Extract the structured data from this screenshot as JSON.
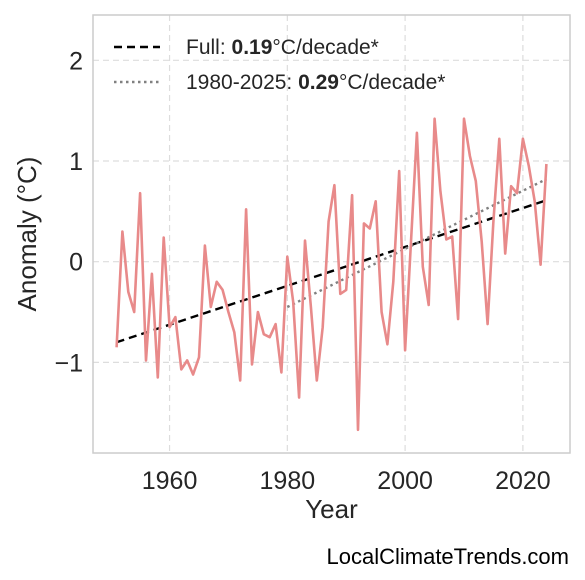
{
  "chart_data": {
    "type": "line",
    "xlabel": "Year",
    "ylabel": "Anomaly (°C)",
    "xlim": [
      1947,
      2028
    ],
    "ylim": [
      -1.9,
      2.45
    ],
    "x_ticks": [
      1960,
      1980,
      2000,
      2020
    ],
    "y_ticks": [
      -1,
      0,
      1,
      2
    ],
    "y_tick_labels": [
      "−1",
      "0",
      "1",
      "2"
    ],
    "grid": true,
    "legend_position": "top-left",
    "colors": {
      "series": "#e88a8a",
      "full_trend": "#000000",
      "recent_trend": "#808080",
      "grid": "#dddddd",
      "frame": "#cccccc"
    },
    "series": [
      {
        "name": "",
        "x": [
          1951,
          1952,
          1953,
          1954,
          1955,
          1956,
          1957,
          1958,
          1959,
          1960,
          1961,
          1962,
          1963,
          1964,
          1965,
          1966,
          1967,
          1968,
          1969,
          1970,
          1971,
          1972,
          1973,
          1974,
          1975,
          1976,
          1977,
          1978,
          1979,
          1980,
          1981,
          1982,
          1983,
          1984,
          1985,
          1986,
          1987,
          1988,
          1989,
          1990,
          1991,
          1992,
          1993,
          1994,
          1995,
          1996,
          1997,
          1998,
          1999,
          2000,
          2001,
          2002,
          2003,
          2004,
          2005,
          2006,
          2007,
          2008,
          2009,
          2010,
          2011,
          2012,
          2013,
          2014,
          2015,
          2016,
          2017,
          2018,
          2019,
          2020,
          2021,
          2022,
          2023,
          2024
        ],
        "values": [
          -0.85,
          0.3,
          -0.3,
          -0.5,
          0.68,
          -0.98,
          -0.12,
          -1.15,
          0.24,
          -0.65,
          -0.55,
          -1.07,
          -0.98,
          -1.12,
          -0.95,
          0.16,
          -0.45,
          -0.2,
          -0.28,
          -0.5,
          -0.7,
          -1.18,
          0.52,
          -1.02,
          -0.5,
          -0.72,
          -0.75,
          -0.62,
          -1.1,
          0.05,
          -0.4,
          -1.35,
          0.21,
          -0.45,
          -1.18,
          -0.65,
          0.4,
          0.76,
          -0.32,
          -0.28,
          0.66,
          -1.67,
          0.38,
          0.33,
          0.6,
          -0.5,
          -0.82,
          -0.2,
          0.9,
          -0.88,
          0.2,
          1.28,
          -0.05,
          -0.43,
          1.42,
          0.7,
          0.22,
          0.25,
          -0.57,
          1.42,
          1.05,
          0.8,
          0.2,
          -0.62,
          0.4,
          1.22,
          0.08,
          0.75,
          0.68,
          1.22,
          0.95,
          0.6,
          -0.03,
          0.97
        ]
      }
    ],
    "trends": [
      {
        "label_prefix": "Full: ",
        "rate": "0.19",
        "label_suffix": "°C/decade*",
        "style": "dashed",
        "x": [
          1951,
          2024
        ],
        "y": [
          -0.8,
          0.61
        ]
      },
      {
        "label_prefix": "1980-2025: ",
        "rate": "0.29",
        "label_suffix": "°C/decade*",
        "style": "dotted",
        "x": [
          1980,
          2024
        ],
        "y": [
          -0.45,
          0.82
        ]
      }
    ]
  },
  "watermark": "LocalClimateTrends.com"
}
